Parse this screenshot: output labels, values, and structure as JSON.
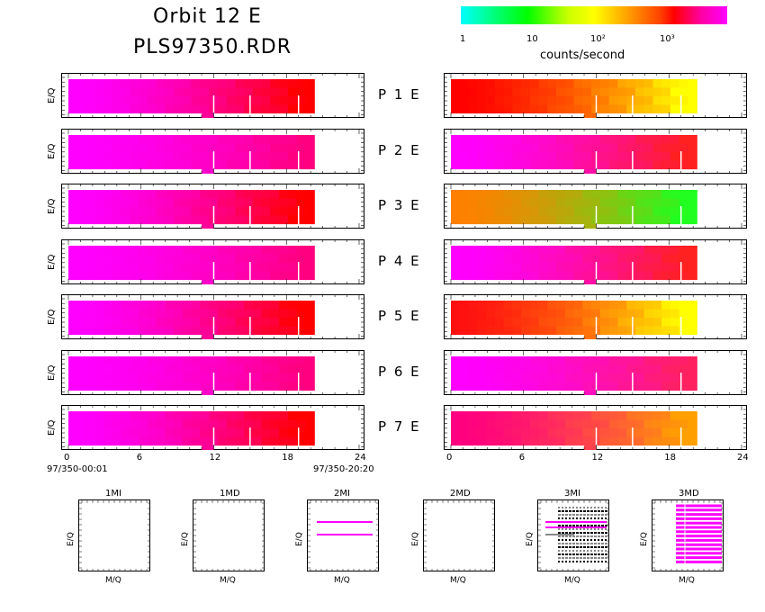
{
  "header": {
    "title_line1": "Orbit 12 E",
    "title_line2": "PLS97350.RDR"
  },
  "colorbar": {
    "ticks": [
      "1",
      "10",
      "10²",
      "10³"
    ],
    "label": "counts/second",
    "colors": [
      "#00ffff",
      "#00ff00",
      "#ffff00",
      "#ffa500",
      "#ff0000",
      "#ff00ff"
    ]
  },
  "panels": {
    "ylabel": "E/Q",
    "rows": [
      {
        "label": "P 1 E"
      },
      {
        "label": "P 2 E"
      },
      {
        "label": "P 3 E"
      },
      {
        "label": "P 4 E"
      },
      {
        "label": "P 5 E"
      },
      {
        "label": "P 6 E"
      },
      {
        "label": "P 7 E"
      }
    ],
    "xticks": [
      "0",
      "6",
      "12",
      "18",
      "24"
    ],
    "start_time": "97/350-00:01",
    "end_time": "97/350-20:20"
  },
  "mini_panels": {
    "ylabel": "E/Q",
    "xlabel": "M/Q",
    "titles": [
      "1MI",
      "1MD",
      "2MI",
      "2MD",
      "3MI",
      "3MD"
    ]
  },
  "chart_data": {
    "type": "heatmap",
    "title": "Orbit 12 E PLS97350.RDR",
    "x_unit": "hours",
    "x_range": [
      0,
      24
    ],
    "xticks": [
      0,
      6,
      12,
      18,
      24
    ],
    "data_end_hour": 20.3,
    "colorbar_range": [
      1,
      10000
    ],
    "colorbar_scale": "log",
    "colorbar_label": "counts/second",
    "left_column": [
      {
        "label": "P 1 E",
        "start_color": "#ff00ff",
        "end_color": "#ff0000"
      },
      {
        "label": "P 2 E",
        "start_color": "#ff00ff",
        "end_color": "#ff0080"
      },
      {
        "label": "P 3 E",
        "start_color": "#ff00ff",
        "end_color": "#ff0000"
      },
      {
        "label": "P 4 E",
        "start_color": "#ff00ff",
        "end_color": "#ff0080"
      },
      {
        "label": "P 5 E",
        "start_color": "#ff00ff",
        "end_color": "#ff0000"
      },
      {
        "label": "P 6 E",
        "start_color": "#ff00ff",
        "end_color": "#ff0080"
      },
      {
        "label": "P 7 E",
        "start_color": "#ff00ff",
        "end_color": "#ff0000"
      }
    ],
    "right_column": [
      {
        "label": "P 1 E",
        "start_color": "#ff0000",
        "end_color": "#ffff00"
      },
      {
        "label": "P 2 E",
        "start_color": "#ff00ff",
        "end_color": "#ff2020"
      },
      {
        "label": "P 3 E",
        "start_color": "#ff8000",
        "end_color": "#20ff20"
      },
      {
        "label": "P 4 E",
        "start_color": "#ff00ff",
        "end_color": "#ff2020"
      },
      {
        "label": "P 5 E",
        "start_color": "#ff1010",
        "end_color": "#ffff00"
      },
      {
        "label": "P 6 E",
        "start_color": "#ff00ff",
        "end_color": "#ff2060"
      },
      {
        "label": "P 7 E",
        "start_color": "#ff0080",
        "end_color": "#ffa000"
      }
    ]
  }
}
